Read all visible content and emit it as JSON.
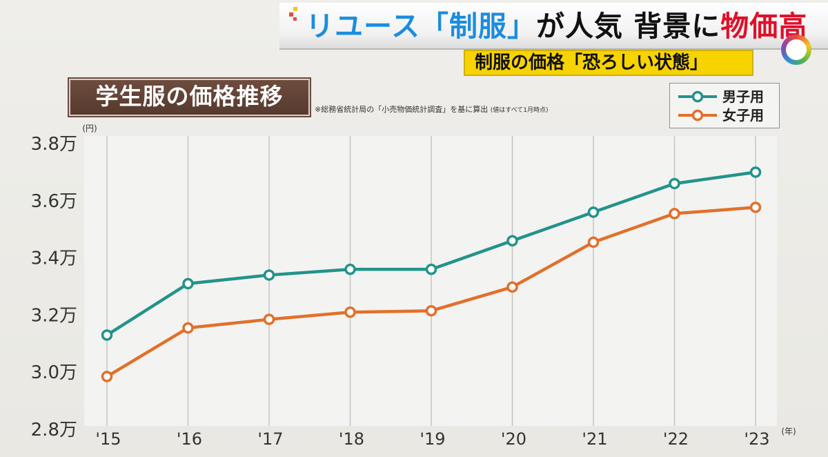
{
  "headline": {
    "part_blue": "リユース「制服」",
    "part_black": "が人気 背景に",
    "part_red": "物価高"
  },
  "subheadline": "制服の価格「恐ろしい状態」",
  "source_note": "※総務省統計局の「小売物価統計調査」を基に算出",
  "source_note_small": "(値はすべて1月時点)",
  "colors": {
    "boys": "#23938a",
    "girls": "#e2702a"
  },
  "chart_data": {
    "type": "line",
    "title": "学生服の価格推移",
    "y_unit": "(円)",
    "x_unit": "(年)",
    "categories": [
      "'15",
      "'16",
      "'17",
      "'18",
      "'19",
      "'20",
      "'21",
      "'22",
      "'23"
    ],
    "y_tick_labels": [
      "3.8万",
      "3.6万",
      "3.4万",
      "3.2万",
      "3.0万",
      "2.8万"
    ],
    "y_ticks": [
      38000,
      36000,
      34000,
      32000,
      30000,
      28000
    ],
    "ylim": [
      28000,
      38000
    ],
    "grid": true,
    "legend_position": "top-right",
    "series": [
      {
        "name": "男子用",
        "values": [
          31300,
          33100,
          33400,
          33600,
          33600,
          34600,
          35600,
          36600,
          37000
        ]
      },
      {
        "name": "女子用",
        "values": [
          29850,
          31550,
          31850,
          32100,
          32150,
          32980,
          34550,
          35550,
          35770
        ]
      }
    ]
  }
}
